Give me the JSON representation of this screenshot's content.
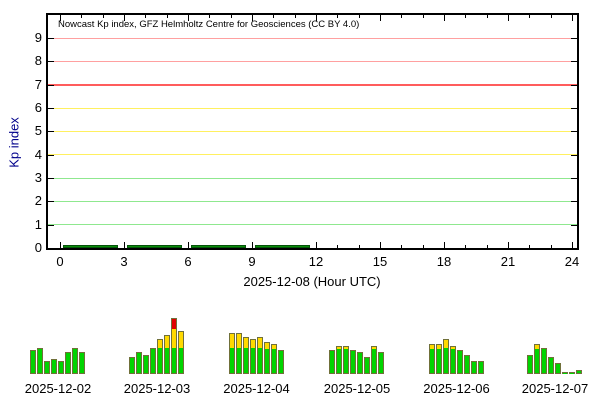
{
  "figure_title": "Nowcast Kp index, GFZ Helmholtz Centre for Geosciences (CC BY 4.0)",
  "kp_thresholds": {
    "quiet_green_below": 4,
    "active_yellow_below": 7,
    "storm_red_at_or_above": 7
  },
  "colors": {
    "mini_bar_green": "#00d400",
    "mini_bar_yellow": "#ffd900",
    "mini_bar_red": "#e00000",
    "mini_bar_outline": "#70703a",
    "main_bar_fill": "#0a8f0a",
    "main_bar_edge": "#05520a",
    "grid_green": "#8fe88f",
    "grid_yellow": "#fff060",
    "grid_salmon": "#ffa0a0",
    "grid_storm_red": "#ff5c5c",
    "axis_color": "#000000",
    "ylabel_color": "#00008b"
  },
  "chart_data": [
    {
      "type": "bar",
      "role": "main-nowcast",
      "title": "Nowcast Kp index, GFZ Helmholtz Centre for Geosciences (CC BY 4.0)",
      "xlabel": "2025-12-08 (Hour UTC)",
      "ylabel": "Kp index",
      "xlim": [
        0,
        24
      ],
      "ylim": [
        0,
        9
      ],
      "x_ticks": [
        0,
        3,
        6,
        9,
        12,
        15,
        18,
        21,
        24
      ],
      "y_ticks": [
        0,
        1,
        2,
        3,
        4,
        5,
        6,
        7,
        8,
        9
      ],
      "grid": "horizontal colored threshold lines",
      "intervals_hour_utc": [
        [
          0,
          3
        ],
        [
          3,
          6
        ],
        [
          6,
          9
        ],
        [
          9,
          12
        ]
      ],
      "values": [
        0,
        0,
        0,
        0
      ]
    },
    {
      "type": "bar",
      "date": "2025-12-02",
      "ylim": [
        0,
        9
      ],
      "values": [
        3.67,
        4,
        2,
        2.33,
        2,
        3.33,
        4,
        3.33
      ]
    },
    {
      "type": "bar",
      "date": "2025-12-03",
      "ylim": [
        0,
        9
      ],
      "values": [
        2.67,
        3.33,
        3,
        4,
        5.33,
        6,
        8.67,
        6.67
      ]
    },
    {
      "type": "bar",
      "date": "2025-12-04",
      "ylim": [
        0,
        9
      ],
      "values": [
        6.33,
        6.33,
        5.67,
        5.33,
        5.67,
        5,
        4.67,
        3.67
      ]
    },
    {
      "type": "bar",
      "date": "2025-12-05",
      "ylim": [
        0,
        9
      ],
      "values": [
        3.67,
        4.33,
        4.33,
        3.67,
        3.33,
        2.67,
        4.33,
        3.33
      ]
    },
    {
      "type": "bar",
      "date": "2025-12-06",
      "ylim": [
        0,
        9
      ],
      "values": [
        4.67,
        4.67,
        5.33,
        4.33,
        3.67,
        3,
        2,
        2
      ]
    },
    {
      "type": "bar",
      "date": "2025-12-07",
      "ylim": [
        0,
        9
      ],
      "values": [
        3,
        4.67,
        4,
        2.67,
        1.67,
        0.33,
        0.33,
        0.67
      ]
    }
  ]
}
